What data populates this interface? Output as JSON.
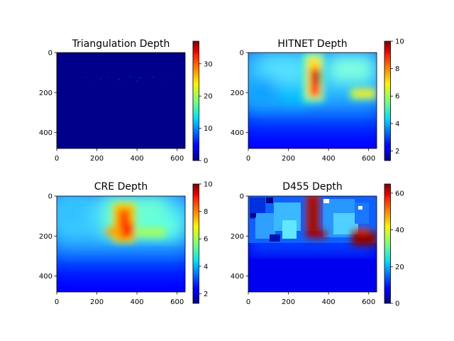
{
  "chart_data": [
    {
      "type": "heatmap",
      "title": "Triangulation Depth",
      "xlim": [
        0,
        640
      ],
      "ylim": [
        480,
        0
      ],
      "xticks": [
        0,
        200,
        400,
        600
      ],
      "yticks": [
        0,
        200,
        400
      ],
      "colorbar": {
        "min": 0,
        "max": 37,
        "ticks": [
          0,
          10,
          20,
          30
        ]
      },
      "scene": "sparse",
      "colormap": "jet"
    },
    {
      "type": "heatmap",
      "title": "HITNET Depth",
      "xlim": [
        0,
        640
      ],
      "ylim": [
        480,
        0
      ],
      "xticks": [
        0,
        200,
        400,
        600
      ],
      "yticks": [
        0,
        200,
        400
      ],
      "colorbar": {
        "min": 1.3,
        "max": 10,
        "ticks": [
          2,
          4,
          6,
          8,
          10
        ]
      },
      "scene": "smooth",
      "colormap": "jet"
    },
    {
      "type": "heatmap",
      "title": "CRE Depth",
      "xlim": [
        0,
        640
      ],
      "ylim": [
        480,
        0
      ],
      "xticks": [
        0,
        200,
        400,
        600
      ],
      "yticks": [
        0,
        200,
        400
      ],
      "colorbar": {
        "min": 1.3,
        "max": 10,
        "ticks": [
          2,
          4,
          6,
          8,
          10
        ]
      },
      "scene": "smooth",
      "colormap": "jet"
    },
    {
      "type": "heatmap",
      "title": "D455 Depth",
      "xlim": [
        0,
        640
      ],
      "ylim": [
        480,
        0
      ],
      "xticks": [
        0,
        200,
        400,
        600
      ],
      "yticks": [
        0,
        200,
        400
      ],
      "colorbar": {
        "min": 0,
        "max": 65,
        "ticks": [
          0,
          20,
          40,
          60
        ]
      },
      "scene": "noisy",
      "colormap": "jet"
    }
  ]
}
